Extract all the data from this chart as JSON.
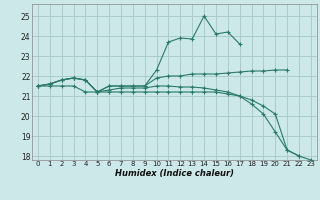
{
  "xlabel": "Humidex (Indice chaleur)",
  "bg_color": "#cce8e8",
  "grid_color": "#aacccc",
  "line_color": "#2a7a6a",
  "xlim": [
    -0.5,
    23.5
  ],
  "ylim": [
    17.8,
    25.6
  ],
  "xticks": [
    0,
    1,
    2,
    3,
    4,
    5,
    6,
    7,
    8,
    9,
    10,
    11,
    12,
    13,
    14,
    15,
    16,
    17,
    18,
    19,
    20,
    21,
    22,
    23
  ],
  "yticks": [
    18,
    19,
    20,
    21,
    22,
    23,
    24,
    25
  ],
  "series": [
    {
      "x": [
        0,
        1,
        2,
        3,
        4,
        5,
        6,
        7,
        8,
        9,
        10,
        11,
        12,
        13,
        14,
        15,
        16,
        17
      ],
      "y": [
        21.5,
        21.6,
        21.8,
        21.9,
        21.8,
        21.2,
        21.5,
        21.5,
        21.5,
        21.5,
        22.3,
        23.7,
        23.9,
        23.85,
        25.0,
        24.1,
        24.2,
        23.6
      ]
    },
    {
      "x": [
        0,
        1,
        2,
        3,
        4,
        5,
        6,
        7,
        8,
        9,
        10,
        11,
        12,
        13,
        14,
        15,
        16,
        17,
        18,
        19,
        20,
        21
      ],
      "y": [
        21.5,
        21.6,
        21.8,
        21.9,
        21.8,
        21.2,
        21.5,
        21.5,
        21.5,
        21.5,
        21.9,
        22.0,
        22.0,
        22.1,
        22.1,
        22.1,
        22.15,
        22.2,
        22.25,
        22.25,
        22.3,
        22.3
      ]
    },
    {
      "x": [
        0,
        1,
        2,
        3,
        4,
        5,
        6,
        7,
        8,
        9,
        10,
        11,
        12,
        13,
        14,
        15,
        16,
        17,
        18,
        19,
        20,
        21,
        22,
        23
      ],
      "y": [
        21.5,
        21.6,
        21.8,
        21.9,
        21.8,
        21.2,
        21.3,
        21.4,
        21.4,
        21.4,
        21.5,
        21.5,
        21.45,
        21.45,
        21.4,
        21.3,
        21.2,
        21.0,
        20.6,
        20.1,
        19.2,
        18.3,
        18.0,
        17.8
      ]
    },
    {
      "x": [
        0,
        1,
        2,
        3,
        4,
        5,
        6,
        7,
        8,
        9,
        10,
        11,
        12,
        13,
        14,
        15,
        16,
        17,
        18,
        19,
        20,
        21,
        22
      ],
      "y": [
        21.5,
        21.5,
        21.5,
        21.5,
        21.2,
        21.2,
        21.2,
        21.2,
        21.2,
        21.2,
        21.2,
        21.2,
        21.2,
        21.2,
        21.2,
        21.2,
        21.1,
        21.0,
        20.8,
        20.5,
        20.1,
        18.3,
        18.0
      ]
    }
  ]
}
